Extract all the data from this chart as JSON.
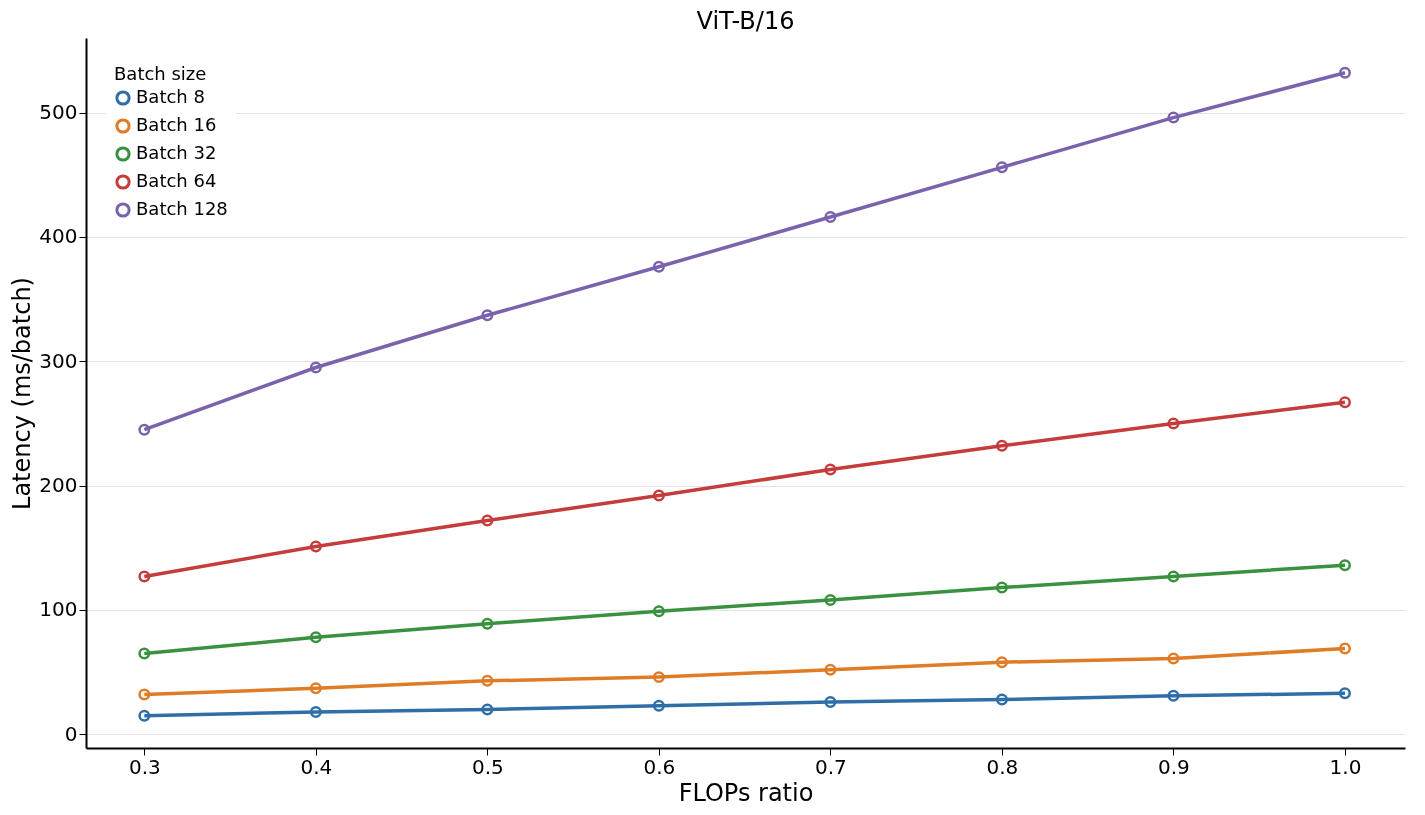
{
  "chart_data": {
    "type": "line",
    "title": "ViT-B/16",
    "xlabel": "FLOPs ratio",
    "ylabel": "Latency (ms/batch)",
    "legend_title": "Batch size",
    "x": [
      0.3,
      0.4,
      0.5,
      0.6,
      0.7,
      0.8,
      0.9,
      1.0
    ],
    "series": [
      {
        "name": "Batch 8",
        "color": "#2f6ea6",
        "values": [
          15,
          18,
          20,
          23,
          26,
          28,
          31,
          33
        ]
      },
      {
        "name": "Batch 16",
        "color": "#e07b26",
        "values": [
          32,
          37,
          43,
          46,
          52,
          58,
          61,
          69
        ]
      },
      {
        "name": "Batch 32",
        "color": "#3a913f",
        "values": [
          65,
          78,
          89,
          99,
          108,
          118,
          127,
          136
        ]
      },
      {
        "name": "Batch 64",
        "color": "#c43c3c",
        "values": [
          127,
          151,
          172,
          192,
          213,
          232,
          250,
          267
        ]
      },
      {
        "name": "Batch 128",
        "color": "#7b62ad",
        "values": [
          245,
          295,
          337,
          376,
          416,
          456,
          496,
          532
        ]
      }
    ],
    "xlim": [
      0.266,
      1.035
    ],
    "xticks": [
      {
        "value": 0.3,
        "label": "0.3"
      },
      {
        "value": 0.4,
        "label": "0.4"
      },
      {
        "value": 0.5,
        "label": "0.5"
      },
      {
        "value": 0.6,
        "label": "0.6"
      },
      {
        "value": 0.7,
        "label": "0.7"
      },
      {
        "value": 0.8,
        "label": "0.8"
      },
      {
        "value": 0.9,
        "label": "0.9"
      },
      {
        "value": 1.0,
        "label": "1.0"
      }
    ],
    "ylim": [
      -11,
      560
    ],
    "yticks": [
      0,
      100,
      200,
      300,
      400,
      500
    ],
    "grid": "y",
    "legend": "top left",
    "marker": "circle",
    "line_style": "solid"
  }
}
